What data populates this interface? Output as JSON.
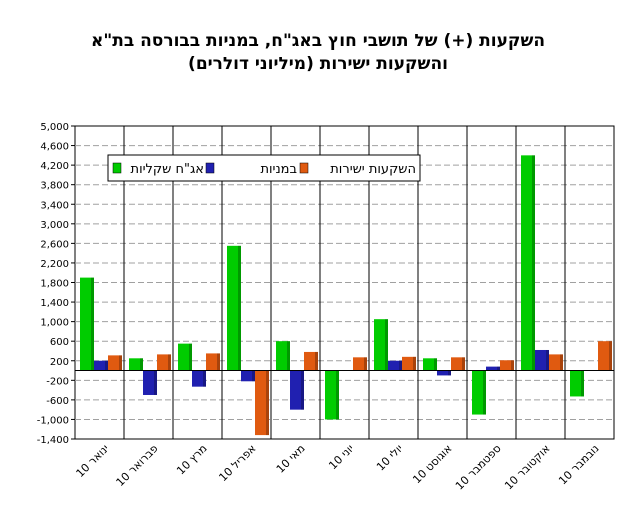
{
  "chart_data": {
    "type": "bar",
    "title_lines": [
      "השקעות (+) של תושבי חוץ באג\"ח, במניות בבורסה בת\"א",
      "והשקעות ישירות (מיליוני דולרים)"
    ],
    "categories": [
      "ינואר 10",
      "פברואר 10",
      "מרץ 10",
      "אפריל 10",
      "מאי 10",
      "יוני 10",
      "יולי 10",
      "אוגוסט 10",
      "ספטמבר 10",
      "אוקטובר 10",
      "נובמבר 10"
    ],
    "series": [
      {
        "name": "אג\"ח שקליות",
        "color": "#00cc00",
        "values": [
          1900,
          250,
          550,
          2550,
          600,
          -1000,
          1050,
          250,
          -900,
          4400,
          -530
        ]
      },
      {
        "name": "במניות",
        "color": "#2020b0",
        "values": [
          200,
          -500,
          -330,
          -220,
          -800,
          0,
          200,
          -100,
          80,
          420,
          0
        ]
      },
      {
        "name": "השקעות ישירות",
        "color": "#e05a10",
        "values": [
          310,
          330,
          350,
          -1320,
          380,
          270,
          280,
          270,
          210,
          330,
          600
        ]
      }
    ],
    "ylim": [
      -1400,
      5000
    ],
    "yticks": [
      "5,000",
      "4,600",
      "4,200",
      "3,800",
      "3,400",
      "3,000",
      "2,600",
      "2,200",
      "1,800",
      "1,400",
      "1,000",
      "600",
      "200",
      "-200",
      "-600",
      "-1,000",
      "-1,400"
    ],
    "ytick_values": [
      5000,
      4600,
      4200,
      3800,
      3400,
      3000,
      2600,
      2200,
      1800,
      1400,
      1000,
      600,
      200,
      -200,
      -600,
      -1000,
      -1400
    ],
    "grid": true,
    "legend_position": "top-left",
    "legend_order": [
      "השקעות ישירות",
      "במניות",
      "אג\"ח שקליות"
    ]
  }
}
